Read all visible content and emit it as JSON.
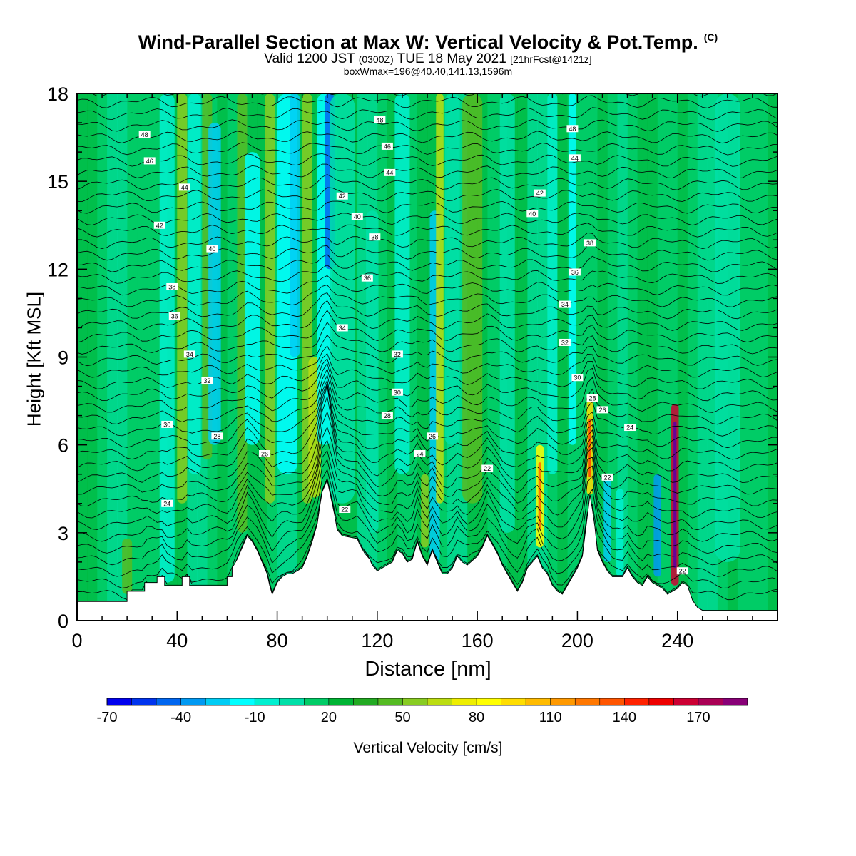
{
  "title": {
    "main": "Wind-Parallel Section at Max W: Vertical Velocity & Pot.Temp.",
    "copyright": "(C)",
    "valid_prefix": "Valid 1200 JST",
    "utc": "(0300Z)",
    "valid_date": "TUE 18 May 2021",
    "forecast": "[21hrFcst@1421z]",
    "box": "boxWmax=196@40.40,141.13,1596m"
  },
  "chart_data": {
    "type": "heatmap",
    "xlabel": "Distance [nm]",
    "ylabel": "Height [Kft MSL]",
    "xlim": [
      0,
      280
    ],
    "ylim": [
      0,
      18
    ],
    "xticks": [
      0,
      40,
      80,
      120,
      160,
      200,
      240
    ],
    "yticks": [
      0,
      3,
      6,
      9,
      12,
      15,
      18
    ],
    "colorbar": {
      "label": "Vertical Velocity [cm/s]",
      "tick_labels": [
        -70,
        -40,
        -10,
        20,
        50,
        80,
        110,
        140,
        170
      ],
      "levels": [
        -70,
        -60,
        -50,
        -40,
        -30,
        -20,
        -10,
        0,
        10,
        20,
        30,
        40,
        50,
        60,
        70,
        80,
        90,
        100,
        110,
        120,
        130,
        140,
        150,
        160,
        170,
        180
      ],
      "colors": [
        "#0000ee",
        "#0033ee",
        "#0066f0",
        "#0099f2",
        "#00ccf4",
        "#00ffff",
        "#00f0d0",
        "#00e0a8",
        "#00cc66",
        "#00b434",
        "#22aa22",
        "#55bb22",
        "#88cc22",
        "#bbdd11",
        "#eeee00",
        "#ffff00",
        "#ffdd00",
        "#ffbb00",
        "#ff9900",
        "#ff7700",
        "#ff5500",
        "#ff2200",
        "#ee0000",
        "#cc0033",
        "#aa0055",
        "#880077",
        "#660099"
      ]
    },
    "terrain_kft": [
      [
        0,
        0.65
      ],
      [
        20,
        0.65
      ],
      [
        20,
        1.0
      ],
      [
        27,
        1.0
      ],
      [
        27,
        1.3
      ],
      [
        32,
        1.3
      ],
      [
        32,
        1.5
      ],
      [
        35,
        1.5
      ],
      [
        35,
        1.2
      ],
      [
        42,
        1.2
      ],
      [
        42,
        1.5
      ],
      [
        45,
        1.5
      ],
      [
        45,
        1.2
      ],
      [
        60,
        1.2
      ],
      [
        60,
        1.5
      ],
      [
        62,
        1.5
      ],
      [
        62,
        1.8
      ],
      [
        64,
        2.1
      ],
      [
        66,
        2.5
      ],
      [
        68,
        2.9
      ],
      [
        70,
        2.7
      ],
      [
        72,
        2.4
      ],
      [
        74,
        2.0
      ],
      [
        76,
        1.6
      ],
      [
        77,
        1.2
      ],
      [
        78,
        0.9
      ],
      [
        80,
        1.3
      ],
      [
        82,
        1.5
      ],
      [
        84,
        1.6
      ],
      [
        86,
        1.6
      ],
      [
        90,
        1.8
      ],
      [
        92,
        2.2
      ],
      [
        94,
        2.7
      ],
      [
        96,
        3.3
      ],
      [
        97,
        3.9
      ],
      [
        98,
        4.4
      ],
      [
        100,
        4.8
      ],
      [
        101,
        4.4
      ],
      [
        103,
        3.6
      ],
      [
        104,
        3.1
      ],
      [
        106,
        2.9
      ],
      [
        112,
        2.8
      ],
      [
        113,
        2.6
      ],
      [
        115,
        2.3
      ],
      [
        117,
        2.1
      ],
      [
        118,
        1.9
      ],
      [
        120,
        1.7
      ],
      [
        122,
        1.8
      ],
      [
        124,
        1.9
      ],
      [
        126,
        2.0
      ],
      [
        128,
        2.4
      ],
      [
        130,
        2.3
      ],
      [
        132,
        2.0
      ],
      [
        134,
        2.1
      ],
      [
        136,
        2.7
      ],
      [
        138,
        2.2
      ],
      [
        140,
        1.9
      ],
      [
        142,
        2.4
      ],
      [
        144,
        2.0
      ],
      [
        146,
        1.6
      ],
      [
        148,
        1.6
      ],
      [
        150,
        1.8
      ],
      [
        152,
        2.2
      ],
      [
        154,
        2.0
      ],
      [
        156,
        1.9
      ],
      [
        160,
        2.2
      ],
      [
        162,
        2.5
      ],
      [
        164,
        2.9
      ],
      [
        166,
        2.6
      ],
      [
        168,
        2.3
      ],
      [
        170,
        1.9
      ],
      [
        172,
        1.6
      ],
      [
        174,
        1.3
      ],
      [
        176,
        1.0
      ],
      [
        178,
        1.3
      ],
      [
        180,
        1.8
      ],
      [
        182,
        2.0
      ],
      [
        184,
        2.2
      ],
      [
        186,
        1.8
      ],
      [
        188,
        1.6
      ],
      [
        190,
        1.2
      ],
      [
        192,
        1.0
      ],
      [
        194,
        0.9
      ],
      [
        196,
        1.2
      ],
      [
        198,
        1.5
      ],
      [
        200,
        1.8
      ],
      [
        202,
        2.2
      ],
      [
        203,
        2.9
      ],
      [
        204,
        3.6
      ],
      [
        205,
        4.3
      ],
      [
        206,
        3.8
      ],
      [
        207,
        3.2
      ],
      [
        208,
        2.4
      ],
      [
        210,
        2.0
      ],
      [
        212,
        1.7
      ],
      [
        214,
        1.5
      ],
      [
        218,
        1.5
      ],
      [
        220,
        1.8
      ],
      [
        222,
        1.5
      ],
      [
        224,
        1.3
      ],
      [
        226,
        1.2
      ],
      [
        228,
        1.5
      ],
      [
        230,
        1.3
      ],
      [
        232,
        1.2
      ],
      [
        234,
        1.1
      ],
      [
        236,
        0.9
      ],
      [
        238,
        1.0
      ],
      [
        240,
        1.1
      ],
      [
        242,
        1.3
      ],
      [
        244,
        1.2
      ],
      [
        246,
        0.7
      ],
      [
        248,
        0.45
      ],
      [
        250,
        0.35
      ],
      [
        280,
        0.35
      ]
    ],
    "theta_contour_labels": [
      {
        "x": 27,
        "y": 16.6,
        "v": "48"
      },
      {
        "x": 29,
        "y": 15.7,
        "v": "46"
      },
      {
        "x": 43,
        "y": 14.8,
        "v": "44"
      },
      {
        "x": 33,
        "y": 13.5,
        "v": "42"
      },
      {
        "x": 54,
        "y": 12.7,
        "v": "40"
      },
      {
        "x": 38,
        "y": 11.4,
        "v": "38"
      },
      {
        "x": 39,
        "y": 10.4,
        "v": "36"
      },
      {
        "x": 45,
        "y": 9.1,
        "v": "34"
      },
      {
        "x": 52,
        "y": 8.2,
        "v": "32"
      },
      {
        "x": 36,
        "y": 6.7,
        "v": "30"
      },
      {
        "x": 56,
        "y": 6.3,
        "v": "28"
      },
      {
        "x": 75,
        "y": 5.7,
        "v": "26"
      },
      {
        "x": 36,
        "y": 4.0,
        "v": "24"
      },
      {
        "x": 121,
        "y": 17.1,
        "v": "48"
      },
      {
        "x": 124,
        "y": 16.2,
        "v": "46"
      },
      {
        "x": 125,
        "y": 15.3,
        "v": "44"
      },
      {
        "x": 106,
        "y": 14.5,
        "v": "42"
      },
      {
        "x": 112,
        "y": 13.8,
        "v": "40"
      },
      {
        "x": 119,
        "y": 13.1,
        "v": "38"
      },
      {
        "x": 116,
        "y": 11.7,
        "v": "36"
      },
      {
        "x": 106,
        "y": 10.0,
        "v": "34"
      },
      {
        "x": 128,
        "y": 9.1,
        "v": "32"
      },
      {
        "x": 128,
        "y": 7.8,
        "v": "30"
      },
      {
        "x": 124,
        "y": 7.0,
        "v": "28"
      },
      {
        "x": 142,
        "y": 6.3,
        "v": "26"
      },
      {
        "x": 137,
        "y": 5.7,
        "v": "24"
      },
      {
        "x": 164,
        "y": 5.2,
        "v": "22"
      },
      {
        "x": 107,
        "y": 3.8,
        "v": "22"
      },
      {
        "x": 198,
        "y": 16.8,
        "v": "48"
      },
      {
        "x": 199,
        "y": 15.8,
        "v": "44"
      },
      {
        "x": 185,
        "y": 14.6,
        "v": "42"
      },
      {
        "x": 182,
        "y": 13.9,
        "v": "40"
      },
      {
        "x": 205,
        "y": 12.9,
        "v": "38"
      },
      {
        "x": 199,
        "y": 11.9,
        "v": "36"
      },
      {
        "x": 195,
        "y": 10.8,
        "v": "34"
      },
      {
        "x": 195,
        "y": 9.5,
        "v": "32"
      },
      {
        "x": 200,
        "y": 8.3,
        "v": "30"
      },
      {
        "x": 206,
        "y": 7.6,
        "v": "28"
      },
      {
        "x": 210,
        "y": 7.2,
        "v": "26"
      },
      {
        "x": 221,
        "y": 6.6,
        "v": "24"
      },
      {
        "x": 212,
        "y": 4.9,
        "v": "22"
      },
      {
        "x": 242,
        "y": 1.7,
        "v": "22"
      }
    ],
    "velocity_features": [
      {
        "x": 20,
        "w": 4,
        "ymin": 0.9,
        "ymax": 2.8,
        "v": 30
      },
      {
        "x": 36,
        "w": 6,
        "ymin": 1.3,
        "ymax": 18,
        "v": -20
      },
      {
        "x": 42,
        "w": 4,
        "ymin": 4,
        "ymax": 18,
        "v": 40
      },
      {
        "x": 47,
        "w": 5,
        "ymin": 5,
        "ymax": 18,
        "v": -15
      },
      {
        "x": 52,
        "w": 4,
        "ymin": 5.5,
        "ymax": 18,
        "v": 30
      },
      {
        "x": 55,
        "w": 5,
        "ymin": 6,
        "ymax": 17,
        "v": -40
      },
      {
        "x": 66,
        "w": 4,
        "ymin": 3,
        "ymax": 18,
        "v": 35
      },
      {
        "x": 70,
        "w": 6,
        "ymin": 6,
        "ymax": 16,
        "v": -30
      },
      {
        "x": 77,
        "w": 4,
        "ymin": 4,
        "ymax": 18,
        "v": 40
      },
      {
        "x": 84,
        "w": 8,
        "ymin": 5,
        "ymax": 18,
        "v": -25
      },
      {
        "x": 87,
        "w": 4,
        "ymin": 9,
        "ymax": 18,
        "v": -40
      },
      {
        "x": 92,
        "w": 4,
        "ymin": 4,
        "ymax": 18,
        "v": 45
      },
      {
        "x": 95,
        "w": 5,
        "ymin": 4.2,
        "ymax": 9,
        "v": 50
      },
      {
        "x": 99,
        "w": 6,
        "ymin": 6,
        "ymax": 18,
        "v": -30
      },
      {
        "x": 101,
        "w": 4,
        "ymin": 12,
        "ymax": 18,
        "v": -60
      },
      {
        "x": 106,
        "w": 10,
        "ymin": 4,
        "ymax": 18,
        "v": -10
      },
      {
        "x": 118,
        "w": 5,
        "ymin": 3,
        "ymax": 14,
        "v": -8
      },
      {
        "x": 130,
        "w": 6,
        "ymin": 5,
        "ymax": 18,
        "v": -20
      },
      {
        "x": 139,
        "w": 3,
        "ymin": 2.5,
        "ymax": 5,
        "v": 45
      },
      {
        "x": 143,
        "w": 4,
        "ymin": 2,
        "ymax": 14,
        "v": -40
      },
      {
        "x": 145,
        "w": 3,
        "ymin": 4,
        "ymax": 18,
        "v": 55
      },
      {
        "x": 150,
        "w": 6,
        "ymin": 6,
        "ymax": 18,
        "v": -10
      },
      {
        "x": 158,
        "w": 8,
        "ymin": 4,
        "ymax": 18,
        "v": 30
      },
      {
        "x": 172,
        "w": 6,
        "ymin": 3,
        "ymax": 18,
        "v": -10
      },
      {
        "x": 185,
        "w": 3,
        "ymin": 2.5,
        "ymax": 6,
        "v": 70
      },
      {
        "x": 190,
        "w": 4,
        "ymin": 5,
        "ymax": 18,
        "v": -20
      },
      {
        "x": 198,
        "w": 3,
        "ymin": 6,
        "ymax": 18,
        "v": -30
      },
      {
        "x": 205,
        "w": 2.5,
        "ymin": 4.3,
        "ymax": 7.5,
        "v": 80
      },
      {
        "x": 212,
        "w": 3,
        "ymin": 2,
        "ymax": 5,
        "v": -40
      },
      {
        "x": 217,
        "w": 3,
        "ymin": 1.5,
        "ymax": 4.5,
        "v": -15
      },
      {
        "x": 232,
        "w": 3,
        "ymin": 1.5,
        "ymax": 5,
        "v": -45
      },
      {
        "x": 239,
        "w": 3,
        "ymin": 1.2,
        "ymax": 7.4,
        "v": 150
      },
      {
        "x": 260,
        "w": 10,
        "ymin": 2,
        "ymax": 18,
        "v": -5
      }
    ]
  }
}
